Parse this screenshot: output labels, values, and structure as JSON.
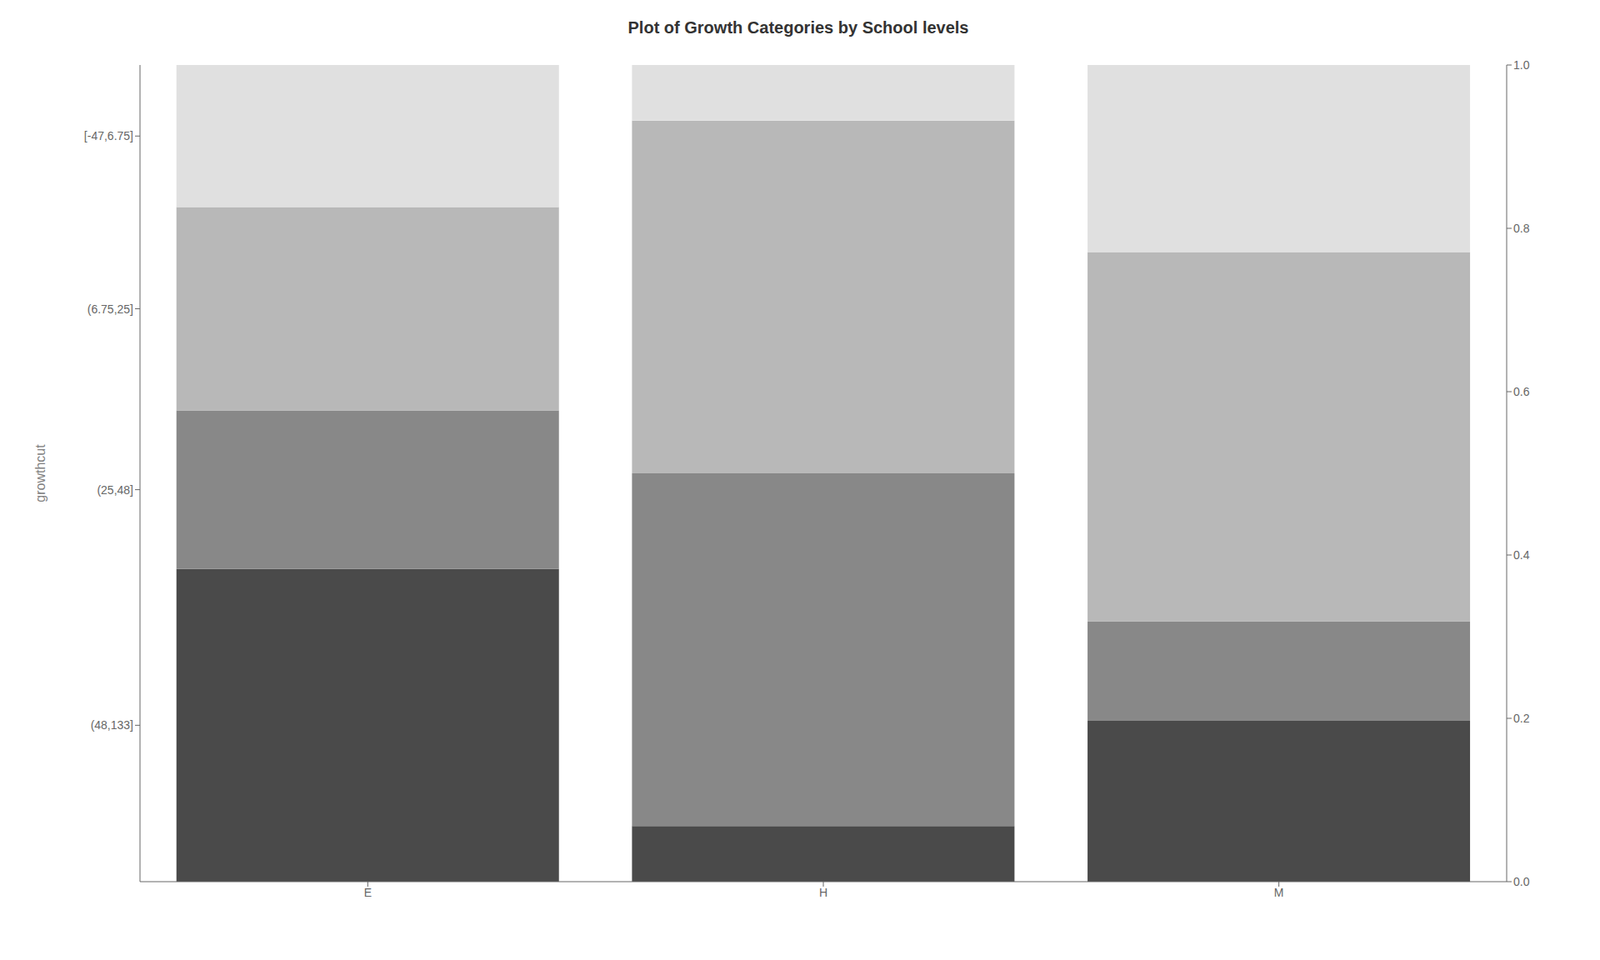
{
  "chart_data": {
    "type": "bar",
    "stacked": true,
    "title": "Plot of Growth Categories by School levels",
    "ylabel": "growthcut",
    "categories": [
      "E",
      "H",
      "M"
    ],
    "series": [
      {
        "name": "(48,133]",
        "color": "#4a4a4a",
        "values": [
          0.383,
          0.068,
          0.197
        ]
      },
      {
        "name": "(25,48]",
        "color": "#888888",
        "values": [
          0.194,
          0.432,
          0.122
        ]
      },
      {
        "name": "(6.75,25]",
        "color": "#b8b8b8",
        "values": [
          0.249,
          0.432,
          0.452
        ]
      },
      {
        "name": "[-47,6.75]",
        "color": "#e0e0e0",
        "values": [
          0.174,
          0.068,
          0.229
        ]
      }
    ],
    "ylim": [
      0.0,
      1.0
    ],
    "yticks": [
      {
        "value": 0.1915,
        "label": "(48,133]"
      },
      {
        "value": 0.48,
        "label": "(25,48]"
      },
      {
        "value": 0.7015,
        "label": "(6.75,25]"
      },
      {
        "value": 0.913,
        "label": "[-47,6.75]"
      }
    ],
    "y2lim": [
      0.0,
      1.0
    ],
    "y2ticks": [
      {
        "value": 0.0,
        "label": "0.0"
      },
      {
        "value": 0.2,
        "label": "0.2"
      },
      {
        "value": 0.4,
        "label": "0.4"
      },
      {
        "value": 0.6,
        "label": "0.6"
      },
      {
        "value": 0.8,
        "label": "0.8"
      },
      {
        "value": 1.0,
        "label": "1.0"
      }
    ],
    "grid": false
  }
}
